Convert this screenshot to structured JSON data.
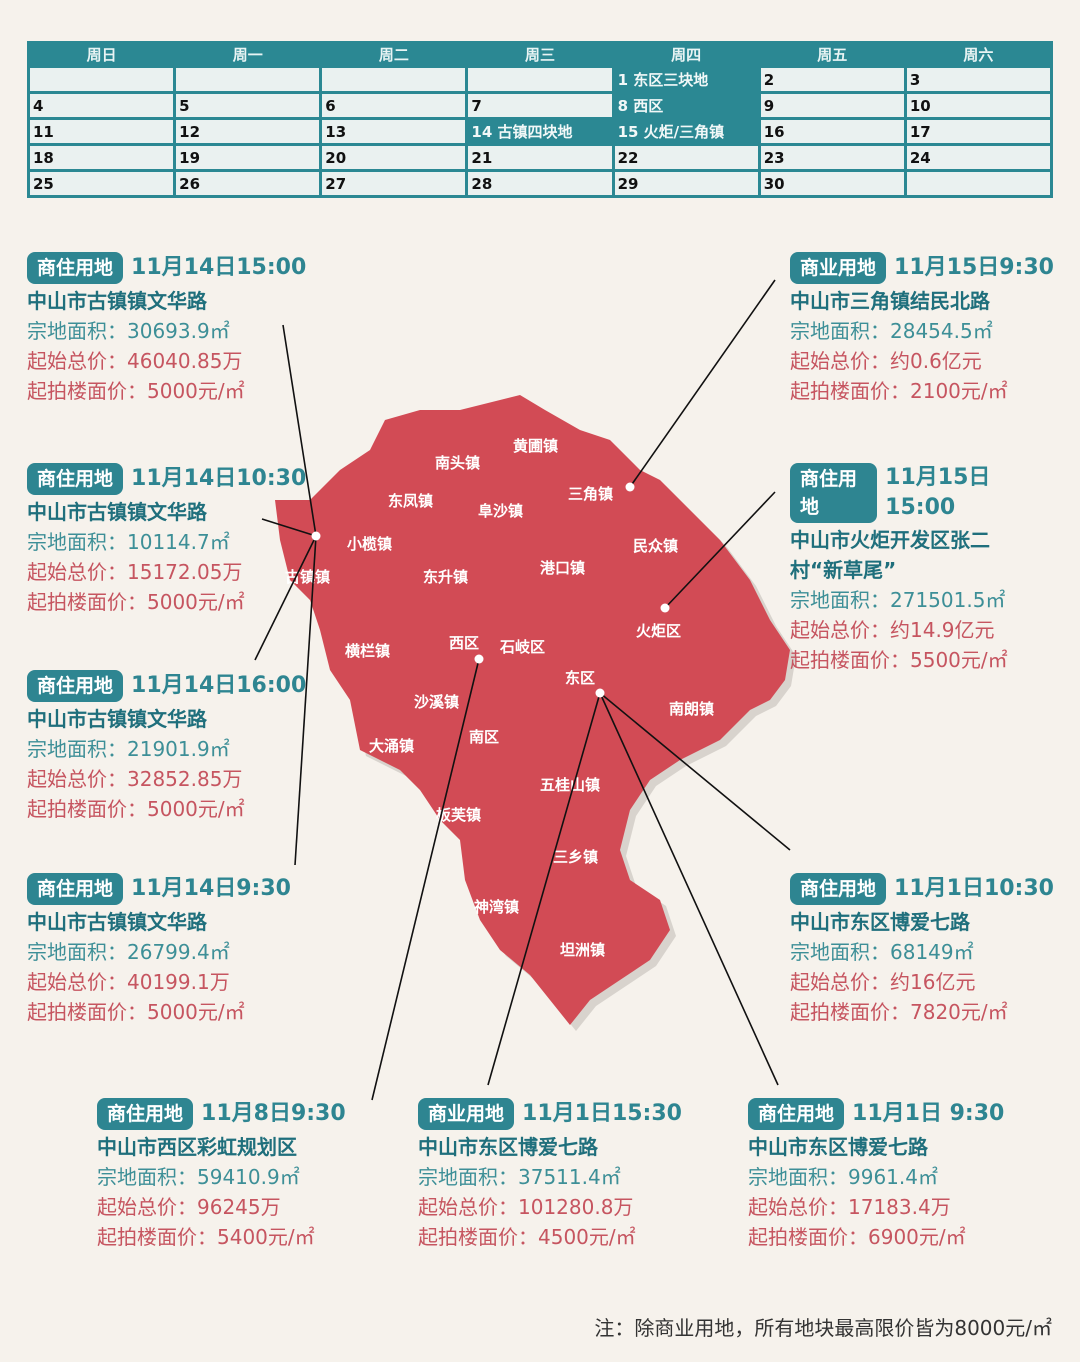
{
  "calendar": {
    "headers": [
      "周日",
      "周一",
      "周二",
      "周三",
      "周四",
      "周五",
      "周六"
    ],
    "rows": [
      [
        "",
        "",
        "",
        "",
        "1 东区三块地",
        "2",
        "3"
      ],
      [
        "4",
        "5",
        "6",
        "7",
        "8 西区",
        "9",
        "10"
      ],
      [
        "11",
        "12",
        "13",
        "14 古镇四块地",
        "15 火炬/三角镇",
        "16",
        "17"
      ],
      [
        "18",
        "19",
        "20",
        "21",
        "22",
        "23",
        "24"
      ],
      [
        "25",
        "26",
        "27",
        "28",
        "29",
        "30",
        ""
      ]
    ],
    "highlighted": [
      "1 东区三块地",
      "8 西区",
      "14 古镇四块地",
      "15 火炬/三角镇"
    ]
  },
  "colors": {
    "accent": "#2e8591",
    "map": "#d24b55",
    "price": "#c65560"
  },
  "parcels": [
    {
      "tag": "商住用地",
      "time": "11月14日15:00",
      "addr": "中山市古镇镇文华路",
      "area": "宗地面积：30693.9㎡",
      "total": "起始总价：46040.85万",
      "unit": "起拍楼面价：5000元/㎡"
    },
    {
      "tag": "商住用地",
      "time": "11月14日10:30",
      "addr": "中山市古镇镇文华路",
      "area": "宗地面积：10114.7㎡",
      "total": "起始总价：15172.05万",
      "unit": "起拍楼面价：5000元/㎡"
    },
    {
      "tag": "商住用地",
      "time": "11月14日16:00",
      "addr": "中山市古镇镇文华路",
      "area": "宗地面积：21901.9㎡",
      "total": "起始总价：32852.85万",
      "unit": "起拍楼面价：5000元/㎡"
    },
    {
      "tag": "商住用地",
      "time": "11月14日9:30",
      "addr": "中山市古镇镇文华路",
      "area": "宗地面积：26799.4㎡",
      "total": "起始总价：40199.1万",
      "unit": "起拍楼面价：5000元/㎡"
    },
    {
      "tag": "商业用地",
      "time": "11月15日9:30",
      "addr": "中山市三角镇结民北路",
      "area": "宗地面积：28454.5㎡",
      "total": "起始总价：约0.6亿元",
      "unit": "起拍楼面价：2100元/㎡"
    },
    {
      "tag": "商住用地",
      "time": "11月15日15:00",
      "addr": "中山市火炬开发区张二村“新草尾”",
      "area": "宗地面积：271501.5㎡",
      "total": "起始总价：约14.9亿元",
      "unit": "起拍楼面价：5500元/㎡"
    },
    {
      "tag": "商住用地",
      "time": "11月1日10:30",
      "addr": "中山市东区博爱七路",
      "area": "宗地面积：68149㎡",
      "total": "起始总价：约16亿元",
      "unit": "起拍楼面价：7820元/㎡"
    },
    {
      "tag": "商住用地",
      "time": "11月8日9:30",
      "addr": "中山市西区彩虹规划区",
      "area": "宗地面积：59410.9㎡",
      "total": "起始总价：96245万",
      "unit": "起拍楼面价：5400元/㎡"
    },
    {
      "tag": "商业用地",
      "time": "11月1日15:30",
      "addr": "中山市东区博爱七路",
      "area": "宗地面积：37511.4㎡",
      "total": "起始总价：101280.8万",
      "unit": "起拍楼面价：4500元/㎡"
    },
    {
      "tag": "商住用地",
      "time": "11月1日  9:30",
      "addr": "中山市东区博爱七路",
      "area": "宗地面积：9961.4㎡",
      "total": "起始总价：17183.4万",
      "unit": "起拍楼面价：6900元/㎡"
    }
  ],
  "districts": [
    "南头镇",
    "黄圃镇",
    "三角镇",
    "东凤镇",
    "阜沙镇",
    "小榄镇",
    "民众镇",
    "港口镇",
    "东升镇",
    "古镇镇",
    "火炬区",
    "横栏镇",
    "西区",
    "石岐区",
    "东区",
    "沙溪镇",
    "南朗镇",
    "大涌镇",
    "南区",
    "五桂山镇",
    "板芙镇",
    "三乡镇",
    "神湾镇",
    "坦洲镇"
  ],
  "note": "注：除商业用地，所有地块最高限价皆为8000元/㎡"
}
